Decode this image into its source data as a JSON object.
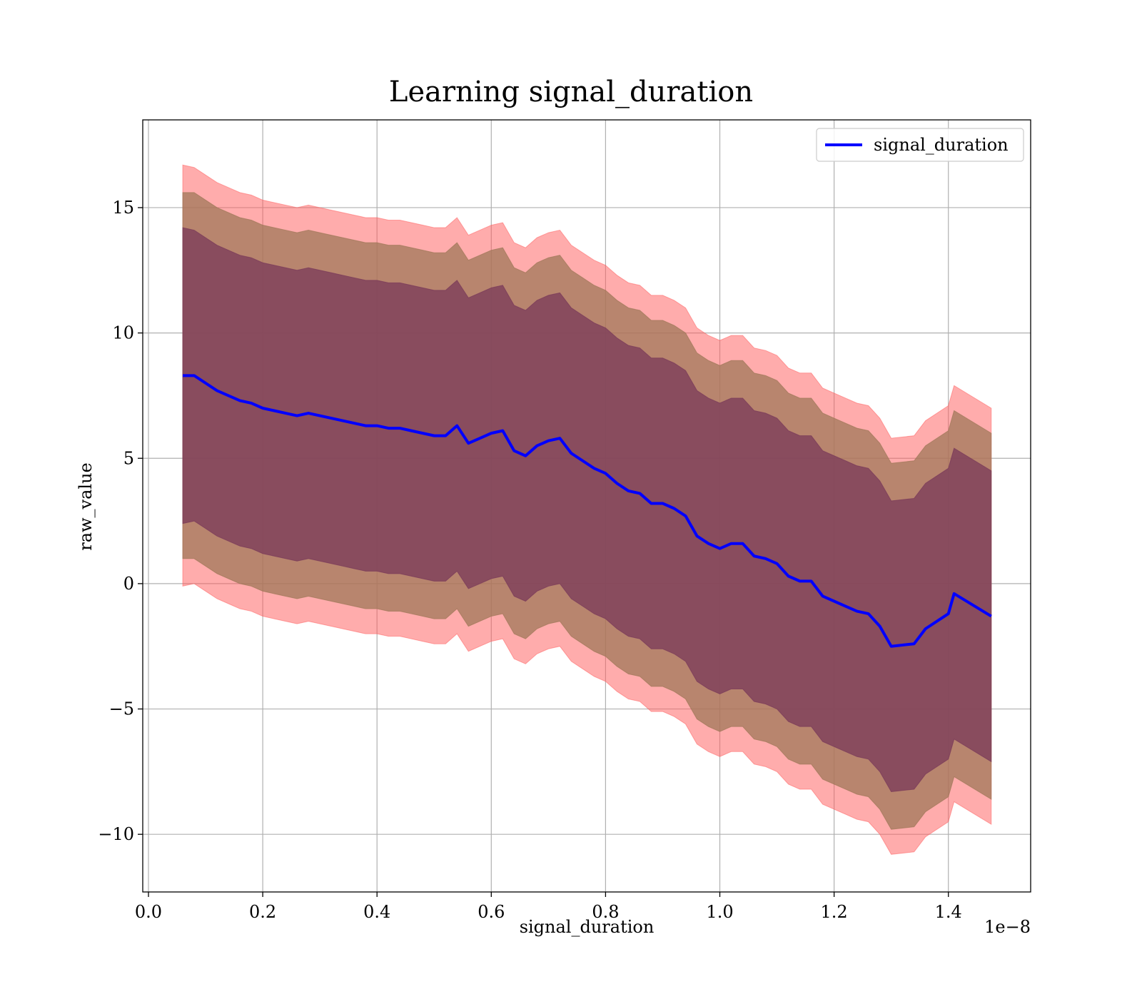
{
  "chart_data": {
    "type": "line",
    "title": "Learning signal_duration",
    "xlabel": "signal_duration",
    "ylabel": "raw_value",
    "x_offset_text": "1e−8",
    "xlim": [
      -1e-10,
      1.544e-08
    ],
    "ylim": [
      -12.3,
      18.5
    ],
    "grid": true,
    "legend_position": "top-right",
    "x_ticks": [
      0.0,
      2e-09,
      4e-09,
      6e-09,
      8e-09,
      1e-08,
      1.2e-08,
      1.4e-08
    ],
    "x_tick_labels": [
      "0.0",
      "0.2",
      "0.4",
      "0.6",
      "0.8",
      "1.0",
      "1.2",
      "1.4"
    ],
    "y_ticks": [
      15,
      10,
      5,
      0,
      -5,
      -10
    ],
    "y_tick_labels": [
      "15",
      "10",
      "5",
      "0",
      "−5",
      "−10"
    ],
    "colors": {
      "line": "#0000ff",
      "band_outer": "#ff5a5a",
      "band_middle": "#a0785a",
      "band_inner": "#7a3a5a",
      "grid": "#b0b0b0"
    },
    "series": [
      {
        "name": "signal_duration",
        "x": [
          6e-10,
          8e-10,
          1e-09,
          1.2e-09,
          1.4e-09,
          1.6e-09,
          1.8e-09,
          2e-09,
          2.2e-09,
          2.4e-09,
          2.6e-09,
          2.8e-09,
          3e-09,
          3.2e-09,
          3.4e-09,
          3.6e-09,
          3.8e-09,
          4e-09,
          4.2e-09,
          4.4e-09,
          4.6e-09,
          4.8e-09,
          5e-09,
          5.2e-09,
          5.4e-09,
          5.6e-09,
          5.8e-09,
          6e-09,
          6.2e-09,
          6.4e-09,
          6.6e-09,
          6.8e-09,
          7e-09,
          7.2e-09,
          7.4e-09,
          7.6e-09,
          7.8e-09,
          8e-09,
          8.2e-09,
          8.4e-09,
          8.6e-09,
          8.8e-09,
          9e-09,
          9.2e-09,
          9.4e-09,
          9.6e-09,
          9.8e-09,
          1e-08,
          1.02e-08,
          1.04e-08,
          1.06e-08,
          1.08e-08,
          1.1e-08,
          1.12e-08,
          1.14e-08,
          1.16e-08,
          1.18e-08,
          1.2e-08,
          1.22e-08,
          1.24e-08,
          1.26e-08,
          1.28e-08,
          1.3e-08,
          1.34e-08,
          1.36e-08,
          1.4e-08,
          1.41e-08,
          1.475e-08
        ],
        "y": [
          8.3,
          8.3,
          8.0,
          7.7,
          7.5,
          7.3,
          7.2,
          7.0,
          6.9,
          6.8,
          6.7,
          6.8,
          6.7,
          6.6,
          6.5,
          6.4,
          6.3,
          6.3,
          6.2,
          6.2,
          6.1,
          6.0,
          5.9,
          5.9,
          6.3,
          5.6,
          5.8,
          6.0,
          6.1,
          5.3,
          5.1,
          5.5,
          5.7,
          5.8,
          5.2,
          4.9,
          4.6,
          4.4,
          4.0,
          3.7,
          3.6,
          3.2,
          3.2,
          3.0,
          2.7,
          1.9,
          1.6,
          1.4,
          1.6,
          1.6,
          1.1,
          1.0,
          0.8,
          0.3,
          0.1,
          0.1,
          -0.5,
          -0.7,
          -0.9,
          -1.1,
          -1.2,
          -1.7,
          -2.5,
          -2.4,
          -1.8,
          -1.2,
          -0.4,
          -1.3
        ],
        "band_inner_half_width": [
          5.9,
          5.8,
          5.8,
          5.8,
          5.8,
          5.8,
          5.8,
          5.8,
          5.8,
          5.8,
          5.8,
          5.8,
          5.8,
          5.8,
          5.8,
          5.8,
          5.8,
          5.8,
          5.8,
          5.8,
          5.8,
          5.8,
          5.8,
          5.8,
          5.8,
          5.8,
          5.8,
          5.8,
          5.8,
          5.8,
          5.8,
          5.8,
          5.8,
          5.8,
          5.8,
          5.8,
          5.8,
          5.8,
          5.8,
          5.8,
          5.8,
          5.8,
          5.8,
          5.8,
          5.8,
          5.8,
          5.8,
          5.8,
          5.8,
          5.8,
          5.8,
          5.8,
          5.8,
          5.8,
          5.8,
          5.8,
          5.8,
          5.8,
          5.8,
          5.8,
          5.8,
          5.8,
          5.8,
          5.8,
          5.8,
          5.8,
          5.8,
          5.8
        ],
        "band_middle_half_width": [
          7.3,
          7.3,
          7.3,
          7.3,
          7.3,
          7.3,
          7.3,
          7.3,
          7.3,
          7.3,
          7.3,
          7.3,
          7.3,
          7.3,
          7.3,
          7.3,
          7.3,
          7.3,
          7.3,
          7.3,
          7.3,
          7.3,
          7.3,
          7.3,
          7.3,
          7.3,
          7.3,
          7.3,
          7.3,
          7.3,
          7.3,
          7.3,
          7.3,
          7.3,
          7.3,
          7.3,
          7.3,
          7.3,
          7.3,
          7.3,
          7.3,
          7.3,
          7.3,
          7.3,
          7.3,
          7.3,
          7.3,
          7.3,
          7.3,
          7.3,
          7.3,
          7.3,
          7.3,
          7.3,
          7.3,
          7.3,
          7.3,
          7.3,
          7.3,
          7.3,
          7.3,
          7.3,
          7.3,
          7.3,
          7.3,
          7.3,
          7.3,
          7.3
        ],
        "band_outer_half_width": [
          8.4,
          8.3,
          8.3,
          8.3,
          8.3,
          8.3,
          8.3,
          8.3,
          8.3,
          8.3,
          8.3,
          8.3,
          8.3,
          8.3,
          8.3,
          8.3,
          8.3,
          8.3,
          8.3,
          8.3,
          8.3,
          8.3,
          8.3,
          8.3,
          8.3,
          8.3,
          8.3,
          8.3,
          8.3,
          8.3,
          8.3,
          8.3,
          8.3,
          8.3,
          8.3,
          8.3,
          8.3,
          8.3,
          8.3,
          8.3,
          8.3,
          8.3,
          8.3,
          8.3,
          8.3,
          8.3,
          8.3,
          8.3,
          8.3,
          8.3,
          8.3,
          8.3,
          8.3,
          8.3,
          8.3,
          8.3,
          8.3,
          8.3,
          8.3,
          8.3,
          8.3,
          8.3,
          8.3,
          8.3,
          8.3,
          8.3,
          8.3,
          8.3
        ]
      }
    ]
  }
}
